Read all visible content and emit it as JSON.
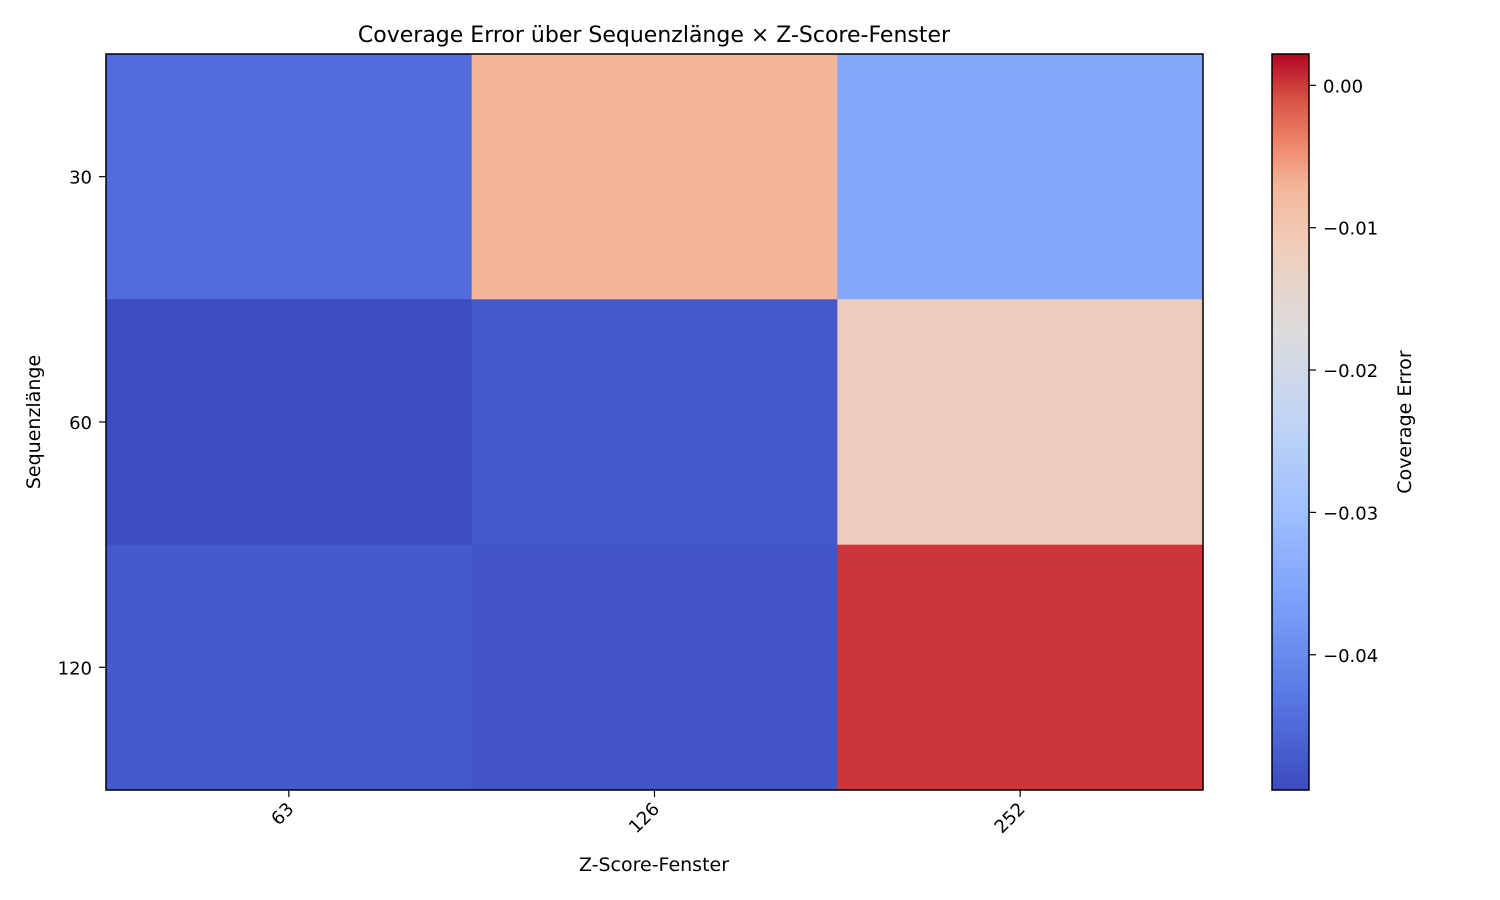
{
  "chart_data": {
    "type": "heatmap",
    "title": "Coverage Error über Sequenzlänge × Z-Score-Fenster",
    "xlabel": "Z-Score-Fenster",
    "ylabel": "Sequenzlänge",
    "x_categories": [
      "63",
      "126",
      "252"
    ],
    "y_categories": [
      "30",
      "60",
      "120"
    ],
    "values": [
      [
        -0.0445,
        -0.0072,
        -0.035
      ],
      [
        -0.0493,
        -0.0475,
        -0.0116
      ],
      [
        -0.0474,
        -0.0482,
        0.0002
      ]
    ],
    "colorbar": {
      "label": "Coverage Error",
      "min": -0.0495,
      "max": 0.0022,
      "ticks": [
        0.0,
        -0.01,
        -0.02,
        -0.03,
        -0.04
      ],
      "tick_labels": [
        "0.00",
        "−0.01",
        "−0.02",
        "−0.03",
        "−0.04"
      ]
    },
    "colormap": "coolwarm",
    "grid": false
  }
}
